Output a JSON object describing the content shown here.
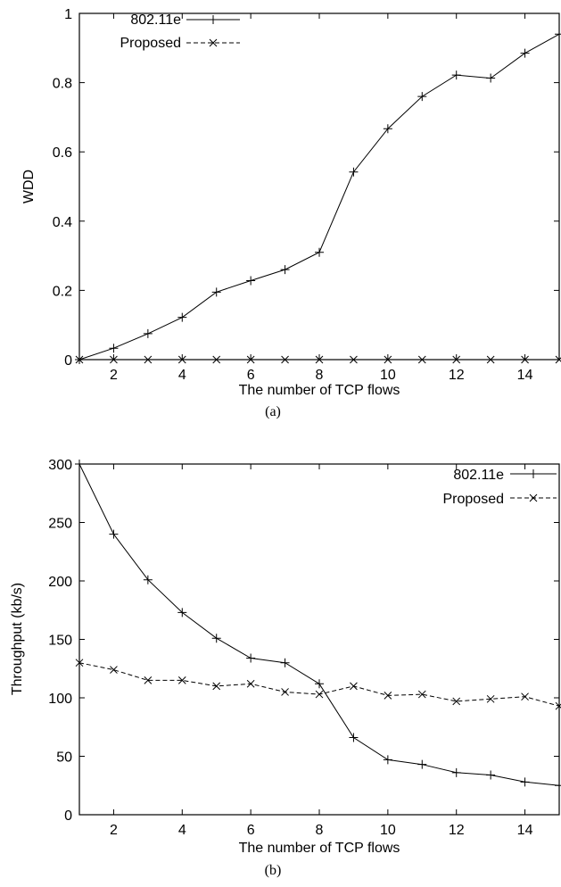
{
  "chart_data": [
    {
      "type": "line",
      "caption": "(a)",
      "xlabel": "The number of TCP flows",
      "ylabel": "WDD",
      "xlim": [
        1,
        15
      ],
      "ylim": [
        0,
        1
      ],
      "xticks": [
        2,
        4,
        6,
        8,
        10,
        12,
        14
      ],
      "yticks": [
        0,
        0.2,
        0.4,
        0.6,
        0.8,
        1
      ],
      "ytick_labels": [
        "0",
        "0.2",
        "0.4",
        "0.6",
        "0.8",
        "1"
      ],
      "grid": false,
      "legend_position": "top-left",
      "x": [
        1,
        2,
        3,
        4,
        5,
        6,
        7,
        8,
        9,
        10,
        11,
        12,
        13,
        14,
        15
      ],
      "series": [
        {
          "name": "802.11e",
          "style": "solid",
          "marker": "plus",
          "values": [
            0,
            0.033,
            0.075,
            0.122,
            0.195,
            0.228,
            0.26,
            0.31,
            0.542,
            0.667,
            0.76,
            0.822,
            0.813,
            0.885,
            0.94
          ]
        },
        {
          "name": "Proposed",
          "style": "dashed",
          "marker": "cross",
          "values": [
            0,
            0,
            0,
            0,
            0,
            0,
            0,
            0,
            0,
            0,
            0,
            0,
            0,
            0,
            0
          ]
        }
      ]
    },
    {
      "type": "line",
      "caption": "(b)",
      "xlabel": "The number of TCP flows",
      "ylabel": "Throughput (kb/s)",
      "xlim": [
        1,
        15
      ],
      "ylim": [
        0,
        300
      ],
      "xticks": [
        2,
        4,
        6,
        8,
        10,
        12,
        14
      ],
      "yticks": [
        0,
        50,
        100,
        150,
        200,
        250,
        300
      ],
      "ytick_labels": [
        "0",
        "50",
        "100",
        "150",
        "200",
        "250",
        "300"
      ],
      "grid": false,
      "legend_position": "top-right",
      "x": [
        1,
        2,
        3,
        4,
        5,
        6,
        7,
        8,
        9,
        10,
        11,
        12,
        13,
        14,
        15
      ],
      "series": [
        {
          "name": "802.11e",
          "style": "solid",
          "marker": "plus",
          "values": [
            300,
            240,
            201,
            173,
            151,
            134,
            130,
            112,
            66,
            47,
            43,
            36,
            34,
            28,
            25
          ]
        },
        {
          "name": "Proposed",
          "style": "dashed",
          "marker": "cross",
          "values": [
            130,
            124,
            115,
            115,
            110,
            112,
            105,
            103,
            110,
            102,
            103,
            97,
            99,
            101,
            93
          ]
        }
      ]
    }
  ]
}
